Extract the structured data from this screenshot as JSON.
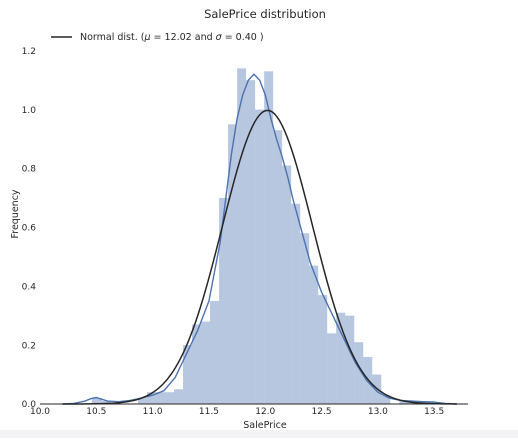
{
  "chart_data": {
    "type": "bar",
    "title": "SalePrice distribution",
    "xlabel": "SalePrice",
    "ylabel": "Frequency",
    "xlim": [
      10.0,
      13.8
    ],
    "ylim": [
      0.0,
      1.25
    ],
    "x_ticks": [
      "10.0",
      "10.5",
      "11.0",
      "11.5",
      "12.0",
      "12.5",
      "13.0",
      "13.5"
    ],
    "y_ticks": [
      "0.0",
      "0.2",
      "0.4",
      "0.6",
      "0.8",
      "1.0",
      "1.2"
    ],
    "grid": false,
    "legend_position": "top-left",
    "legend_label": "Normal dist. ($\\mu=$ 12.02 and $\\sigma=$ 0.40 )",
    "histogram": {
      "bin_edges": [
        10.46,
        10.55,
        10.63,
        10.71,
        10.79,
        10.87,
        10.95,
        11.03,
        11.11,
        11.19,
        11.27,
        11.35,
        11.43,
        11.51,
        11.59,
        11.67,
        11.75,
        11.83,
        11.91,
        11.99,
        12.07,
        12.15,
        12.23,
        12.31,
        12.39,
        12.47,
        12.55,
        12.63,
        12.71,
        12.79,
        12.87,
        12.95,
        13.03,
        13.11,
        13.19,
        13.27,
        13.35,
        13.43,
        13.51
      ],
      "heights": [
        0.02,
        0.01,
        0.0,
        0.0,
        0.0,
        0.02,
        0.04,
        0.04,
        0.04,
        0.05,
        0.2,
        0.27,
        0.28,
        0.35,
        0.7,
        0.95,
        1.14,
        1.1,
        1.0,
        1.13,
        0.93,
        0.81,
        0.68,
        0.58,
        0.47,
        0.37,
        0.24,
        0.31,
        0.3,
        0.21,
        0.16,
        0.1,
        0.03,
        0.0,
        0.01,
        0.01,
        0.01,
        0.01
      ],
      "color": "#4c72b0",
      "alpha": 0.4
    },
    "series": [
      {
        "kind": "kde",
        "color": "#4c72b0",
        "x": [
          10.2,
          10.3,
          10.4,
          10.45,
          10.5,
          10.55,
          10.6,
          10.7,
          10.8,
          10.9,
          11.0,
          11.1,
          11.2,
          11.3,
          11.4,
          11.5,
          11.6,
          11.65,
          11.7,
          11.75,
          11.8,
          11.85,
          11.9,
          11.95,
          12.0,
          12.05,
          12.1,
          12.15,
          12.2,
          12.25,
          12.3,
          12.35,
          12.4,
          12.5,
          12.6,
          12.7,
          12.8,
          12.9,
          13.0,
          13.1,
          13.2,
          13.3,
          13.4,
          13.5,
          13.6,
          13.7
        ],
        "y": [
          0.0,
          0.002,
          0.01,
          0.018,
          0.022,
          0.016,
          0.01,
          0.008,
          0.012,
          0.02,
          0.03,
          0.045,
          0.09,
          0.17,
          0.25,
          0.35,
          0.55,
          0.7,
          0.85,
          0.97,
          1.05,
          1.1,
          1.12,
          1.1,
          1.05,
          0.97,
          0.9,
          0.84,
          0.77,
          0.69,
          0.62,
          0.55,
          0.48,
          0.38,
          0.3,
          0.22,
          0.14,
          0.08,
          0.04,
          0.02,
          0.012,
          0.01,
          0.008,
          0.006,
          0.002,
          0.0
        ]
      },
      {
        "kind": "normal_fit",
        "color": "#262626",
        "mu": 12.02,
        "sigma": 0.4,
        "x_range": [
          10.2,
          13.7
        ]
      }
    ]
  }
}
